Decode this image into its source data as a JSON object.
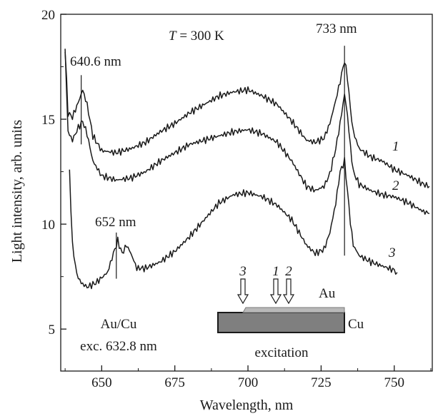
{
  "chart_data": {
    "type": "line",
    "xlabel": "Wavelength, nm",
    "ylabel": "Light intensity, arb. units",
    "xlim": [
      636,
      763
    ],
    "ylim": [
      3,
      20
    ],
    "xticks": [
      650,
      675,
      700,
      725,
      750
    ],
    "yticks": [
      5,
      10,
      15,
      20
    ],
    "grid": false,
    "annotations": {
      "temperature": "T = 300 K",
      "peak_733": "733 nm",
      "peak_640": "640.6 nm",
      "peak_652": "652 nm",
      "sample": "Au/Cu",
      "excitation_line": "exc. 632.8 nm"
    },
    "peak_markers": [
      {
        "label": "733 nm",
        "x": 733,
        "y_from": 8.5,
        "y_to": 18.5
      },
      {
        "label": "640.6 nm",
        "x": 643,
        "y_from": 13.8,
        "y_to": 17.1
      },
      {
        "label": "652 nm",
        "x": 655,
        "y_from": 7.4,
        "y_to": 9.6
      }
    ],
    "series": [
      {
        "name": "1",
        "x": [
          637.5,
          638.5,
          640,
          642,
          643.5,
          645,
          647,
          650,
          655,
          660,
          665,
          670,
          675,
          680,
          685,
          690,
          695,
          700,
          705,
          710,
          715,
          720,
          723,
          726,
          728,
          730,
          731.5,
          733,
          734,
          735,
          736,
          738,
          742,
          746,
          750,
          755,
          760,
          762
        ],
        "y": [
          18.3,
          15.3,
          15.1,
          15.8,
          16.4,
          15.7,
          14.2,
          13.5,
          13.4,
          13.6,
          13.9,
          14.4,
          14.8,
          15.3,
          15.7,
          16.1,
          16.3,
          16.4,
          16.1,
          15.7,
          14.9,
          14.0,
          13.9,
          14.1,
          14.8,
          15.9,
          16.8,
          17.8,
          17.0,
          15.5,
          14.4,
          13.6,
          13.2,
          13.0,
          12.6,
          12.3,
          11.9,
          11.8
        ]
      },
      {
        "name": "2",
        "x": [
          637.5,
          638.5,
          640,
          642,
          643.5,
          645,
          647,
          650,
          655,
          660,
          665,
          670,
          675,
          680,
          685,
          690,
          695,
          700,
          705,
          710,
          715,
          720,
          723,
          726,
          728,
          730,
          731.5,
          733,
          734,
          735,
          736,
          738,
          742,
          746,
          750,
          755,
          760,
          762
        ],
        "y": [
          18.3,
          14.4,
          14.0,
          14.6,
          14.9,
          14.3,
          13.0,
          12.3,
          12.1,
          12.2,
          12.5,
          13.0,
          13.4,
          13.8,
          14.0,
          14.2,
          14.4,
          14.5,
          14.3,
          13.9,
          13.0,
          11.8,
          11.6,
          11.8,
          12.4,
          13.6,
          14.8,
          16.2,
          15.2,
          13.7,
          12.5,
          11.9,
          11.6,
          11.4,
          11.3,
          11.0,
          10.6,
          10.5
        ]
      },
      {
        "name": "3",
        "x": [
          639,
          640,
          641.5,
          643,
          645,
          648,
          652,
          654,
          655.5,
          657,
          658.5,
          660,
          662,
          665,
          670,
          675,
          680,
          685,
          690,
          695,
          700,
          705,
          710,
          715,
          720,
          723,
          726,
          728,
          730,
          731.5,
          733,
          734,
          735,
          736,
          738,
          742,
          746,
          750,
          751
        ],
        "y": [
          12.5,
          9.0,
          7.6,
          7.2,
          7.0,
          7.2,
          7.7,
          8.6,
          9.2,
          8.6,
          9.0,
          8.6,
          7.9,
          7.9,
          8.2,
          8.7,
          9.4,
          10.2,
          11.0,
          11.4,
          11.5,
          11.3,
          10.9,
          10.2,
          9.0,
          8.6,
          8.8,
          9.6,
          11.0,
          12.5,
          13.0,
          11.6,
          10.1,
          9.0,
          8.5,
          8.2,
          8.0,
          7.8,
          7.7
        ]
      }
    ],
    "inset": {
      "labels": {
        "gold": "Au",
        "copper": "Cu",
        "caption": "excitation"
      },
      "arrows": [
        "3",
        "1",
        "2"
      ]
    }
  }
}
